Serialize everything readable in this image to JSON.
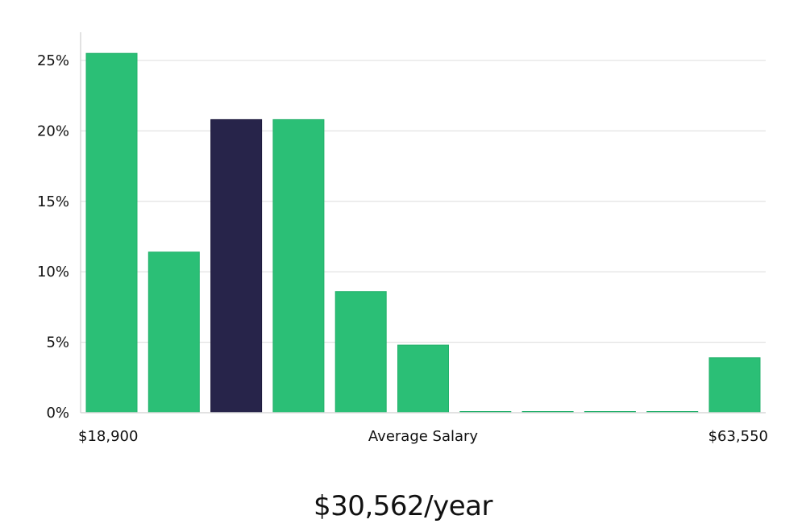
{
  "chart_data": {
    "type": "bar",
    "categories": [
      "1",
      "2",
      "3",
      "4",
      "5",
      "6",
      "7",
      "8",
      "9",
      "10",
      "11"
    ],
    "values": [
      25.5,
      11.4,
      20.8,
      20.8,
      8.6,
      4.8,
      0,
      0,
      0,
      0,
      3.9
    ],
    "highlight_index": 2,
    "ylim": [
      0,
      27
    ],
    "yticks": [
      0,
      5,
      10,
      15,
      20,
      25
    ],
    "ytick_suffix": "%",
    "xlabel": "Average Salary",
    "x_min_label": "$18,900",
    "x_max_label": "$63,550",
    "bar_color": "#2bbf76",
    "highlight_color": "#27244a",
    "grid": true
  },
  "headline": "$30,562/year"
}
